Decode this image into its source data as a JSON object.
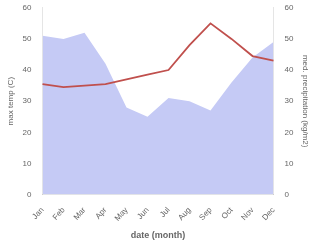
{
  "chart_data": {
    "type": "line",
    "xlabel": "date (month)",
    "ylabel": "max temp (C)",
    "y2label": "med. precipitation (kg/m2)",
    "categories": [
      "Jan",
      "Feb",
      "Mar",
      "Apr",
      "May",
      "Jun",
      "Jul",
      "Aug",
      "Sep",
      "Oct",
      "Nov",
      "Dec"
    ],
    "series": [
      {
        "type": "area",
        "color": "#c5caf5",
        "axis": "y2",
        "values": [
          51,
          50,
          52,
          42,
          28,
          25,
          31,
          30,
          27,
          36,
          44,
          49
        ]
      },
      {
        "type": "line",
        "color": "#c0504d",
        "values": [
          35.5,
          34.5,
          35.0,
          35.5,
          37.0,
          38.5,
          40.0,
          48.0,
          55.0,
          50.0,
          44.5,
          43.0
        ]
      }
    ],
    "ylim": [
      0,
      60
    ],
    "yticks": [
      0,
      10,
      20,
      30,
      40,
      50,
      60
    ],
    "y2lim": [
      0,
      60
    ],
    "y2ticks": [
      0,
      10,
      20,
      30,
      40,
      50,
      60
    ],
    "grid": false
  }
}
